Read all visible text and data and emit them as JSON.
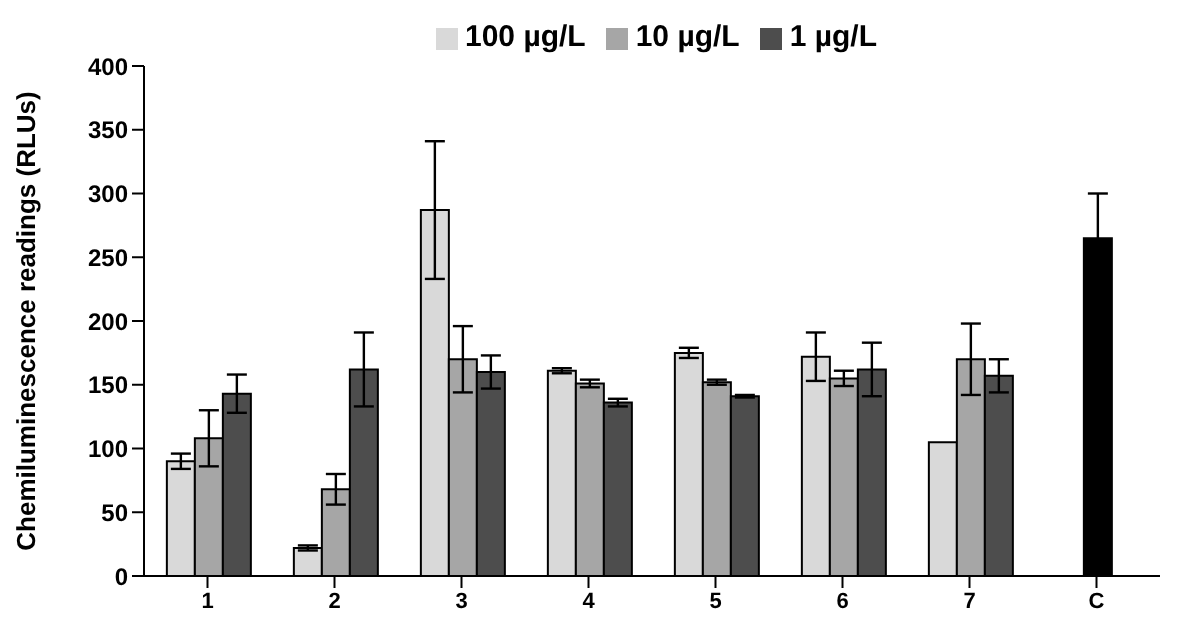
{
  "chart_data": {
    "type": "bar",
    "ylabel": "Chemiluminescence readings (RLUs)",
    "categories": [
      "1",
      "2",
      "3",
      "4",
      "5",
      "6",
      "7",
      "C"
    ],
    "series": [
      {
        "name": "100 µg/L",
        "color": "#d9d9d9",
        "values": [
          90,
          22,
          287,
          161,
          175,
          172,
          105,
          null
        ],
        "errors": [
          6,
          2,
          54,
          2,
          4,
          19,
          null,
          null
        ]
      },
      {
        "name": "10 µg/L",
        "color": "#a6a6a6",
        "values": [
          108,
          68,
          170,
          151,
          152,
          155,
          170,
          null
        ],
        "errors": [
          22,
          12,
          26,
          3,
          2,
          6,
          28,
          null
        ]
      },
      {
        "name": "1 µg/L",
        "color": "#4d4d4d",
        "values": [
          143,
          162,
          160,
          136,
          141,
          162,
          157,
          null
        ],
        "errors": [
          15,
          29,
          13,
          3,
          1,
          21,
          13,
          null
        ]
      },
      {
        "color": "#000000",
        "values": [
          null,
          null,
          null,
          null,
          null,
          null,
          null,
          265
        ],
        "errors": [
          null,
          null,
          null,
          null,
          null,
          null,
          null,
          35
        ]
      }
    ],
    "ylim": [
      0,
      400
    ],
    "yticks": [
      0,
      50,
      100,
      150,
      200,
      250,
      300,
      350,
      400
    ],
    "grid": false,
    "legend": "top"
  }
}
